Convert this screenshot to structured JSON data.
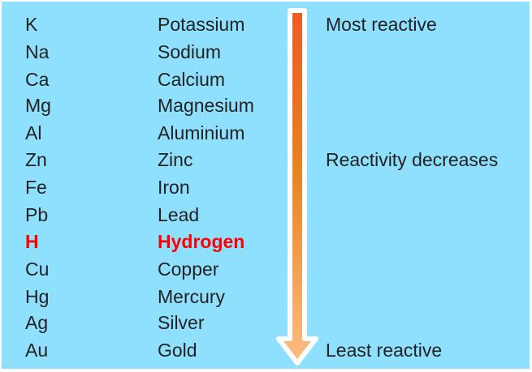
{
  "rows": [
    {
      "symbol": "K",
      "name": "Potassium"
    },
    {
      "symbol": "Na",
      "name": "Sodium"
    },
    {
      "symbol": "Ca",
      "name": "Calcium"
    },
    {
      "symbol": "Mg",
      "name": "Magnesium"
    },
    {
      "symbol": "Al",
      "name": "Aluminium"
    },
    {
      "symbol": "Zn",
      "name": "Zinc"
    },
    {
      "symbol": "Fe",
      "name": "Iron"
    },
    {
      "symbol": "Pb",
      "name": "Lead"
    },
    {
      "symbol": "H",
      "name": "Hydrogen",
      "highlight": true
    },
    {
      "symbol": "Cu",
      "name": "Copper"
    },
    {
      "symbol": "Hg",
      "name": "Mercury"
    },
    {
      "symbol": "Ag",
      "name": "Silver"
    },
    {
      "symbol": "Au",
      "name": "Gold"
    }
  ],
  "labels": {
    "top": "Most reactive",
    "middle": "Reactivity decreases",
    "bottom": "Least reactive"
  },
  "colors": {
    "background": "#8fe0fe",
    "highlight": "#ff0000",
    "arrow_top": "#f05a22",
    "arrow_mid": "#e8821e",
    "arrow_bottom": "#fdbd82"
  }
}
